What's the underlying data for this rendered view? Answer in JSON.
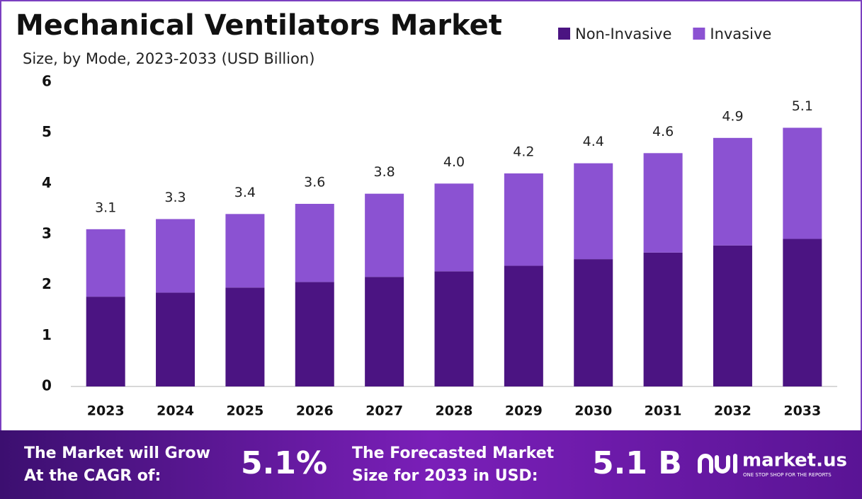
{
  "chart_data": {
    "type": "stacked_bar",
    "title": "Mechanical Ventilators Market",
    "subtitle": "Size, by Mode, 2023-2033 (USD Billion)",
    "categories": [
      "2023",
      "2024",
      "2025",
      "2026",
      "2027",
      "2028",
      "2029",
      "2030",
      "2031",
      "2032",
      "2033"
    ],
    "series": [
      {
        "name": "Non-Invasive",
        "color": "#4b1482",
        "values": [
          1.77,
          1.85,
          1.95,
          2.06,
          2.16,
          2.27,
          2.38,
          2.51,
          2.64,
          2.78,
          2.91
        ]
      },
      {
        "name": "Invasive",
        "color": "#8b52d2",
        "values": [
          1.33,
          1.45,
          1.45,
          1.54,
          1.64,
          1.73,
          1.82,
          1.89,
          1.96,
          2.12,
          2.19
        ]
      }
    ],
    "total_labels": [
      "3.1",
      "3.3",
      "3.4",
      "3.6",
      "3.8",
      "4.0",
      "4.2",
      "4.4",
      "4.6",
      "4.9",
      "5.1"
    ],
    "ylim": [
      0,
      6
    ],
    "yticks": [
      0,
      1,
      2,
      3,
      4,
      5,
      6
    ],
    "grid": false,
    "legend": "top-right"
  },
  "footer": {
    "cagr_text_1": "The Market will Grow",
    "cagr_text_2": "At the CAGR of:",
    "cagr_value": "5.1%",
    "forecast_text_1": "The Forecasted Market",
    "forecast_text_2": "Size for 2033 in USD:",
    "forecast_value": "5.1 B",
    "brand": "market.us",
    "tagline": "ONE STOP SHOP FOR THE REPORTS"
  }
}
